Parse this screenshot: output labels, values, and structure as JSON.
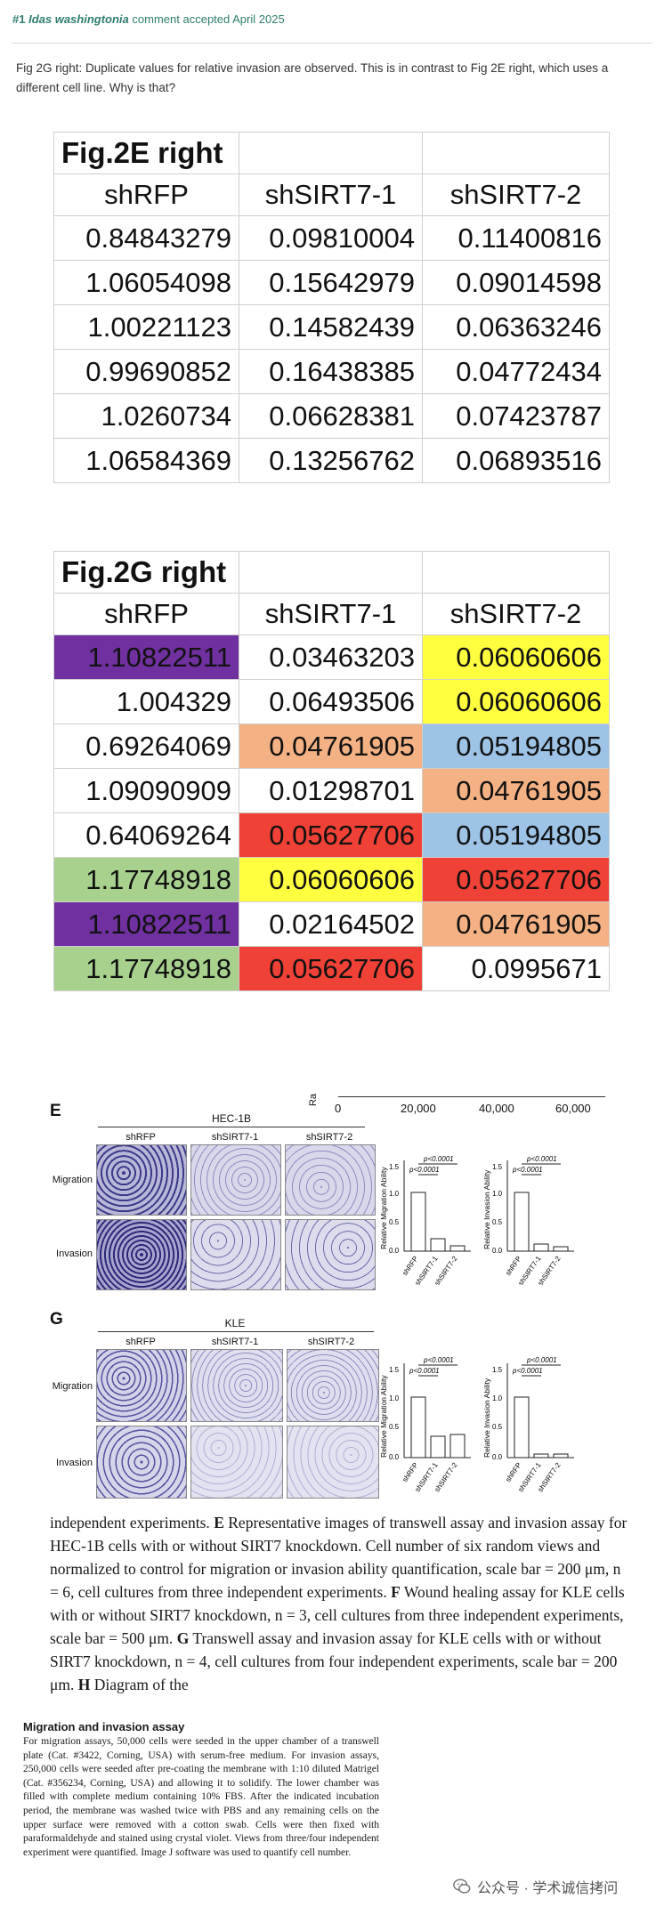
{
  "comment": {
    "number": "#1",
    "author": "Idas washingtonia",
    "status": "comment accepted April 2025",
    "text": "Fig 2G right: Duplicate values for relative invasion are observed. This is in contrast to Fig 2E right, which uses a different cell line. Why is that?"
  },
  "table_e": {
    "title": "Fig.2E right",
    "headers": [
      "shRFP",
      "shSIRT7-1",
      "shSIRT7-2"
    ],
    "rows": [
      [
        "0.84843279",
        "0.09810004",
        "0.11400816"
      ],
      [
        "1.06054098",
        "0.15642979",
        "0.09014598"
      ],
      [
        "1.00221123",
        "0.14582439",
        "0.06363246"
      ],
      [
        "0.99690852",
        "0.16438385",
        "0.04772434"
      ],
      [
        "1.0260734",
        "0.06628381",
        "0.07423787"
      ],
      [
        "1.06584369",
        "0.13256762",
        "0.06893516"
      ]
    ]
  },
  "table_g": {
    "title": "Fig.2G right",
    "headers": [
      "shRFP",
      "shSIRT7-1",
      "shSIRT7-2"
    ],
    "rows": [
      [
        "1.10822511",
        "0.03463203",
        "0.06060606"
      ],
      [
        "1.004329",
        "0.06493506",
        "0.06060606"
      ],
      [
        "0.69264069",
        "0.04761905",
        "0.05194805"
      ],
      [
        "1.09090909",
        "0.01298701",
        "0.04761905"
      ],
      [
        "0.64069264",
        "0.05627706",
        "0.05194805"
      ],
      [
        "1.17748918",
        "0.06060606",
        "0.05627706"
      ],
      [
        "1.10822511",
        "0.02164502",
        "0.04761905"
      ],
      [
        "1.17748918",
        "0.05627706",
        "0.0995671"
      ]
    ],
    "highlight_colors": {
      "purple": "#7030a0",
      "yellow": "#ffff40",
      "orange": "#f4b183",
      "blue": "#9dc3e6",
      "red": "#ef4136",
      "green": "#a9d18e"
    }
  },
  "figure": {
    "top_axis_ticks": [
      "0",
      "20,000",
      "40,000",
      "60,000"
    ],
    "top_axis_label": "Ra",
    "panel_e": {
      "letter": "E",
      "cell_line": "HEC-1B",
      "columns": [
        "shRFP",
        "shSIRT7-1",
        "shSIRT7-2"
      ],
      "rows": [
        "Migration",
        "Invasion"
      ],
      "chart_migration_ylabel": "Relative Migration Ability",
      "chart_invasion_ylabel": "Relative Invasion Ability",
      "pvalue": "p<0.0001",
      "yticks": [
        "0.0",
        "0.5",
        "1.0",
        "1.5"
      ]
    },
    "panel_g": {
      "letter": "G",
      "cell_line": "KLE",
      "columns": [
        "shRFP",
        "shSIRT7-1",
        "shSIRT7-2"
      ],
      "rows": [
        "Migration",
        "Invasion"
      ],
      "chart_migration_ylabel": "Relative Migration Ability",
      "chart_invasion_ylabel": "Relative Invasion Ability",
      "pvalue": "p<0.0001",
      "yticks": [
        "0.0",
        "0.5",
        "1.0",
        "1.5"
      ]
    }
  },
  "caption": {
    "line1": "independent experiments.",
    "e_letter": "E",
    "e_text": "Representative images of transwell assay and invasion assay for HEC-1B cells with or without SIRT7 knockdown. Cell number of six random views and normalized to control for migration or invasion ability quantification, scale bar = 200 μm, n = 6, cell cultures from three independent experiments.",
    "f_letter": "F",
    "f_text": "Wound healing assay for KLE cells with or without SIRT7 knockdown, n = 3, cell cultures from three independent experiments, scale bar = 500 μm.",
    "g_letter": "G",
    "g_text": "Transwell assay and invasion assay for KLE cells with or without SIRT7 knockdown, n = 4, cell cultures from four independent experiments, scale bar = 200 μm.",
    "h_letter": "H",
    "h_text": "Diagram of the"
  },
  "methods": {
    "title": "Migration and invasion assay",
    "body": "For migration assays, 50,000 cells were seeded in the upper chamber of a transwell plate (Cat. #3422, Corning, USA) with serum-free medium. For invasion assays, 250,000 cells were seeded after pre-coating the membrane with 1:10 diluted Matrigel (Cat. #356234, Corning, USA) and allowing it to solidify. The lower chamber was filled with complete medium containing 10% FBS. After the indicated incubation period, the membrane was washed twice with PBS and any remaining cells on the upper surface were removed with a cotton swab. Cells were then fixed with paraformaldehyde and stained using crystal violet. Views from three/four independent experiment were quantified. Image J software was used to quantify cell number."
  },
  "watermark": {
    "text": "公众号 · 学术诚信拷问"
  }
}
